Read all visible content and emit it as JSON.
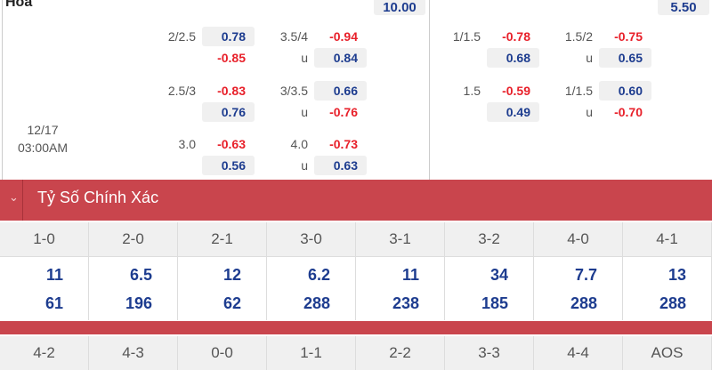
{
  "section_title": "Hoa",
  "top_values": [
    "10.00",
    "5.50"
  ],
  "match_date": "12/17",
  "match_time": "03:00AM",
  "left_rows": [
    {
      "l1": "2/2.5",
      "v1a": "0.78",
      "v1b": "-0.85",
      "l2": "3.5/4",
      "l2b": "u",
      "v2a": "-0.94",
      "v2b": "0.84"
    },
    {
      "l1": "2.5/3",
      "v1a": "-0.83",
      "v1b": "0.76",
      "l2": "3/3.5",
      "l2b": "u",
      "v2a": "0.66",
      "v2b": "-0.76"
    },
    {
      "l1": "3.0",
      "v1a": "-0.63",
      "v1b": "0.56",
      "l2": "4.0",
      "l2b": "u",
      "v2a": "-0.73",
      "v2b": "0.63"
    }
  ],
  "right_rows": [
    {
      "l1": "1/1.5",
      "v1a": "-0.78",
      "v1b": "0.68",
      "l2": "1.5/2",
      "l2b": "u",
      "v2a": "-0.75",
      "v2b": "0.65"
    },
    {
      "l1": "1.5",
      "v1a": "-0.59",
      "v1b": "0.49",
      "l2": "1/1.5",
      "l2b": "u",
      "v2a": "0.60",
      "v2b": "-0.70"
    }
  ],
  "correct_score": {
    "title": "Tỷ Số Chính Xác",
    "scores_1": [
      "1-0",
      "2-0",
      "2-1",
      "3-0",
      "3-1",
      "3-2",
      "4-0",
      "4-1"
    ],
    "odds_1a": [
      "11",
      "6.5",
      "12",
      "6.2",
      "11",
      "34",
      "7.7",
      "13"
    ],
    "odds_1b": [
      "61",
      "196",
      "62",
      "288",
      "238",
      "185",
      "288",
      "288"
    ],
    "scores_2": [
      "4-2",
      "4-3",
      "0-0",
      "1-1",
      "2-2",
      "3-3",
      "4-4",
      "AOS"
    ]
  },
  "colors": {
    "header_red": "#c9454d",
    "positive_blue": "#1d3c8f",
    "negative_red": "#e8202a"
  }
}
